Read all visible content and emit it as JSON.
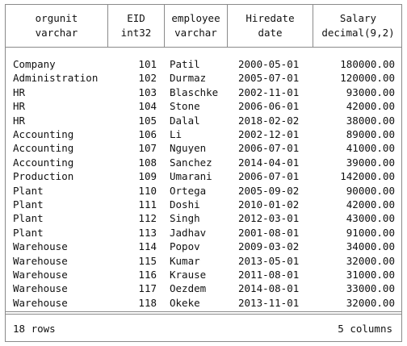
{
  "columns": [
    {
      "name": "orgunit",
      "type": "varchar"
    },
    {
      "name": "EID",
      "type": "int32"
    },
    {
      "name": "employee",
      "type": "varchar"
    },
    {
      "name": "Hiredate",
      "type": "date"
    },
    {
      "name": "Salary",
      "type": "decimal(9,2)"
    }
  ],
  "rows": [
    [
      "Company",
      "101",
      "Patil",
      "2000-05-01",
      "180000.00"
    ],
    [
      "Administration",
      "102",
      "Durmaz",
      "2005-07-01",
      "120000.00"
    ],
    [
      "HR",
      "103",
      "Blaschke",
      "2002-11-01",
      "93000.00"
    ],
    [
      "HR",
      "104",
      "Stone",
      "2006-06-01",
      "42000.00"
    ],
    [
      "HR",
      "105",
      "Dalal",
      "2018-02-02",
      "38000.00"
    ],
    [
      "Accounting",
      "106",
      "Li",
      "2002-12-01",
      "89000.00"
    ],
    [
      "Accounting",
      "107",
      "Nguyen",
      "2006-07-01",
      "41000.00"
    ],
    [
      "Accounting",
      "108",
      "Sanchez",
      "2014-04-01",
      "39000.00"
    ],
    [
      "Production",
      "109",
      "Umarani",
      "2006-07-01",
      "142000.00"
    ],
    [
      "Plant",
      "110",
      "Ortega",
      "2005-09-02",
      "90000.00"
    ],
    [
      "Plant",
      "111",
      "Doshi",
      "2010-01-02",
      "42000.00"
    ],
    [
      "Plant",
      "112",
      "Singh",
      "2012-03-01",
      "43000.00"
    ],
    [
      "Plant",
      "113",
      "Jadhav",
      "2001-08-01",
      "91000.00"
    ],
    [
      "Warehouse",
      "114",
      "Popov",
      "2009-03-02",
      "34000.00"
    ],
    [
      "Warehouse",
      "115",
      "Kumar",
      "2013-05-01",
      "32000.00"
    ],
    [
      "Warehouse",
      "116",
      "Krause",
      "2011-08-01",
      "31000.00"
    ],
    [
      "Warehouse",
      "117",
      "Oezdem",
      "2014-08-01",
      "33000.00"
    ],
    [
      "Warehouse",
      "118",
      "Okeke",
      "2013-11-01",
      "32000.00"
    ]
  ],
  "footer": {
    "row_count": "18 rows",
    "column_count": "5 columns"
  }
}
